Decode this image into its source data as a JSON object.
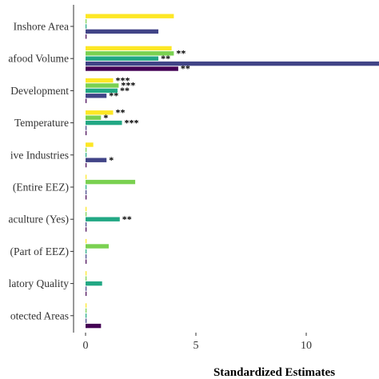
{
  "chart_data": {
    "type": "bar",
    "orientation": "horizontal",
    "xlabel": "Standardized Estimates",
    "xlim": [
      -0.5,
      13.5
    ],
    "xticks": [
      0,
      5,
      10
    ],
    "grid": false,
    "colors": [
      "#fde725",
      "#7ad151",
      "#22a884",
      "#414487",
      "#440154"
    ],
    "categories": [
      {
        "label": "Inshore Area",
        "bars": [
          {
            "value": 4.0,
            "sig": ""
          },
          {
            "value": 0,
            "sig": ""
          },
          {
            "value": 0,
            "sig": ""
          },
          {
            "value": 3.3,
            "sig": ""
          },
          {
            "value": 0,
            "sig": ""
          }
        ]
      },
      {
        "label": "afood Volume",
        "bars": [
          {
            "value": 3.9,
            "sig": ""
          },
          {
            "value": 4.0,
            "sig": "**"
          },
          {
            "value": 3.3,
            "sig": "**"
          },
          {
            "value": 14.0,
            "sig": ""
          },
          {
            "value": 4.2,
            "sig": "**"
          }
        ]
      },
      {
        "label": "Development",
        "bars": [
          {
            "value": 1.25,
            "sig": "***"
          },
          {
            "value": 1.5,
            "sig": "***"
          },
          {
            "value": 1.45,
            "sig": "**"
          },
          {
            "value": 0.95,
            "sig": "**"
          },
          {
            "value": 0,
            "sig": ""
          }
        ]
      },
      {
        "label": "Temperature",
        "bars": [
          {
            "value": 1.25,
            "sig": "**"
          },
          {
            "value": 0.7,
            "sig": "*"
          },
          {
            "value": 1.65,
            "sig": "***"
          },
          {
            "value": 0,
            "sig": ""
          },
          {
            "value": 0,
            "sig": ""
          }
        ]
      },
      {
        "label": "ive Industries",
        "bars": [
          {
            "value": 0.35,
            "sig": ""
          },
          {
            "value": 0,
            "sig": ""
          },
          {
            "value": 0,
            "sig": ""
          },
          {
            "value": 0.95,
            "sig": "*"
          },
          {
            "value": 0,
            "sig": ""
          }
        ]
      },
      {
        "label": "(Entire EEZ)",
        "bars": [
          {
            "value": 0,
            "sig": ""
          },
          {
            "value": 2.25,
            "sig": ""
          },
          {
            "value": 0,
            "sig": ""
          },
          {
            "value": 0,
            "sig": ""
          },
          {
            "value": 0,
            "sig": ""
          }
        ]
      },
      {
        "label": "aculture (Yes)",
        "bars": [
          {
            "value": 0,
            "sig": ""
          },
          {
            "value": 0,
            "sig": ""
          },
          {
            "value": 1.55,
            "sig": "**"
          },
          {
            "value": 0,
            "sig": ""
          },
          {
            "value": 0,
            "sig": ""
          }
        ]
      },
      {
        "label": "(Part of EEZ)",
        "bars": [
          {
            "value": 0,
            "sig": ""
          },
          {
            "value": 1.05,
            "sig": ""
          },
          {
            "value": 0,
            "sig": ""
          },
          {
            "value": 0,
            "sig": ""
          },
          {
            "value": 0,
            "sig": ""
          }
        ]
      },
      {
        "label": "latory Quality",
        "bars": [
          {
            "value": 0,
            "sig": ""
          },
          {
            "value": 0,
            "sig": ""
          },
          {
            "value": 0.75,
            "sig": ""
          },
          {
            "value": 0,
            "sig": ""
          },
          {
            "value": 0,
            "sig": ""
          }
        ]
      },
      {
        "label": "otected Areas",
        "bars": [
          {
            "value": 0,
            "sig": ""
          },
          {
            "value": 0,
            "sig": ""
          },
          {
            "value": 0,
            "sig": ""
          },
          {
            "value": 0,
            "sig": ""
          },
          {
            "value": 0.7,
            "sig": ""
          }
        ]
      }
    ]
  }
}
